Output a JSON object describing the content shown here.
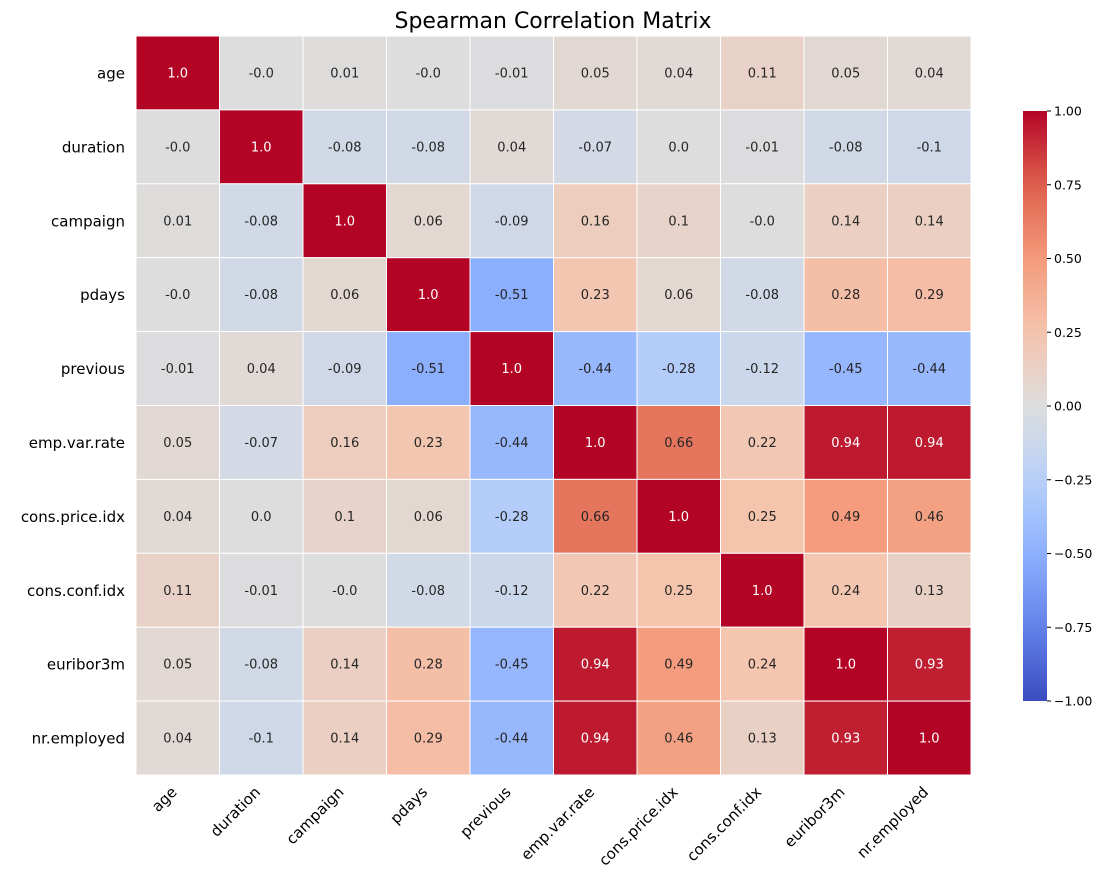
{
  "chart_data": {
    "type": "heatmap",
    "title": "Spearman Correlation Matrix",
    "xlabel": "",
    "ylabel": "",
    "labels": [
      "age",
      "duration",
      "campaign",
      "pdays",
      "previous",
      "emp.var.rate",
      "cons.price.idx",
      "cons.conf.idx",
      "euribor3m",
      "nr.employed"
    ],
    "cell_labels": [
      [
        "1.0",
        "-0.0",
        "0.01",
        "-0.0",
        "-0.01",
        "0.05",
        "0.04",
        "0.11",
        "0.05",
        "0.04"
      ],
      [
        "-0.0",
        "1.0",
        "-0.08",
        "-0.08",
        "0.04",
        "-0.07",
        "0.0",
        "-0.01",
        "-0.08",
        "-0.1"
      ],
      [
        "0.01",
        "-0.08",
        "1.0",
        "0.06",
        "-0.09",
        "0.16",
        "0.1",
        "-0.0",
        "0.14",
        "0.14"
      ],
      [
        "-0.0",
        "-0.08",
        "0.06",
        "1.0",
        "-0.51",
        "0.23",
        "0.06",
        "-0.08",
        "0.28",
        "0.29"
      ],
      [
        "-0.01",
        "0.04",
        "-0.09",
        "-0.51",
        "1.0",
        "-0.44",
        "-0.28",
        "-0.12",
        "-0.45",
        "-0.44"
      ],
      [
        "0.05",
        "-0.07",
        "0.16",
        "0.23",
        "-0.44",
        "1.0",
        "0.66",
        "0.22",
        "0.94",
        "0.94"
      ],
      [
        "0.04",
        "0.0",
        "0.1",
        "0.06",
        "-0.28",
        "0.66",
        "1.0",
        "0.25",
        "0.49",
        "0.46"
      ],
      [
        "0.11",
        "-0.01",
        "-0.0",
        "-0.08",
        "-0.12",
        "0.22",
        "0.25",
        "1.0",
        "0.24",
        "0.13"
      ],
      [
        "0.05",
        "-0.08",
        "0.14",
        "0.28",
        "-0.45",
        "0.94",
        "0.49",
        "0.24",
        "1.0",
        "0.93"
      ],
      [
        "0.04",
        "-0.1",
        "0.14",
        "0.29",
        "-0.44",
        "0.94",
        "0.46",
        "0.13",
        "0.93",
        "1.0"
      ]
    ],
    "values": [
      [
        1.0,
        -0.0,
        0.01,
        -0.0,
        -0.01,
        0.05,
        0.04,
        0.11,
        0.05,
        0.04
      ],
      [
        -0.0,
        1.0,
        -0.08,
        -0.08,
        0.04,
        -0.07,
        0.0,
        -0.01,
        -0.08,
        -0.1
      ],
      [
        0.01,
        -0.08,
        1.0,
        0.06,
        -0.09,
        0.16,
        0.1,
        -0.0,
        0.14,
        0.14
      ],
      [
        -0.0,
        -0.08,
        0.06,
        1.0,
        -0.51,
        0.23,
        0.06,
        -0.08,
        0.28,
        0.29
      ],
      [
        -0.01,
        0.04,
        -0.09,
        -0.51,
        1.0,
        -0.44,
        -0.28,
        -0.12,
        -0.45,
        -0.44
      ],
      [
        0.05,
        -0.07,
        0.16,
        0.23,
        -0.44,
        1.0,
        0.66,
        0.22,
        0.94,
        0.94
      ],
      [
        0.04,
        0.0,
        0.1,
        0.06,
        -0.28,
        0.66,
        1.0,
        0.25,
        0.49,
        0.46
      ],
      [
        0.11,
        -0.01,
        -0.0,
        -0.08,
        -0.12,
        0.22,
        0.25,
        1.0,
        0.24,
        0.13
      ],
      [
        0.05,
        -0.08,
        0.14,
        0.28,
        -0.45,
        0.94,
        0.49,
        0.24,
        1.0,
        0.93
      ],
      [
        0.04,
        -0.1,
        0.14,
        0.29,
        -0.44,
        0.94,
        0.46,
        0.13,
        0.93,
        1.0
      ]
    ],
    "colormap": "coolwarm",
    "vmin": -1.0,
    "vmax": 1.0,
    "colorbar_ticks": [
      1.0,
      0.75,
      0.5,
      0.25,
      0.0,
      -0.25,
      -0.5,
      -0.75,
      -1.0
    ],
    "colorbar_tick_labels": [
      "1.00",
      "0.75",
      "0.50",
      "0.25",
      "0.00",
      "−0.25",
      "−0.50",
      "−0.75",
      "−1.00"
    ],
    "grid": false,
    "legend": "colorbar-right"
  }
}
